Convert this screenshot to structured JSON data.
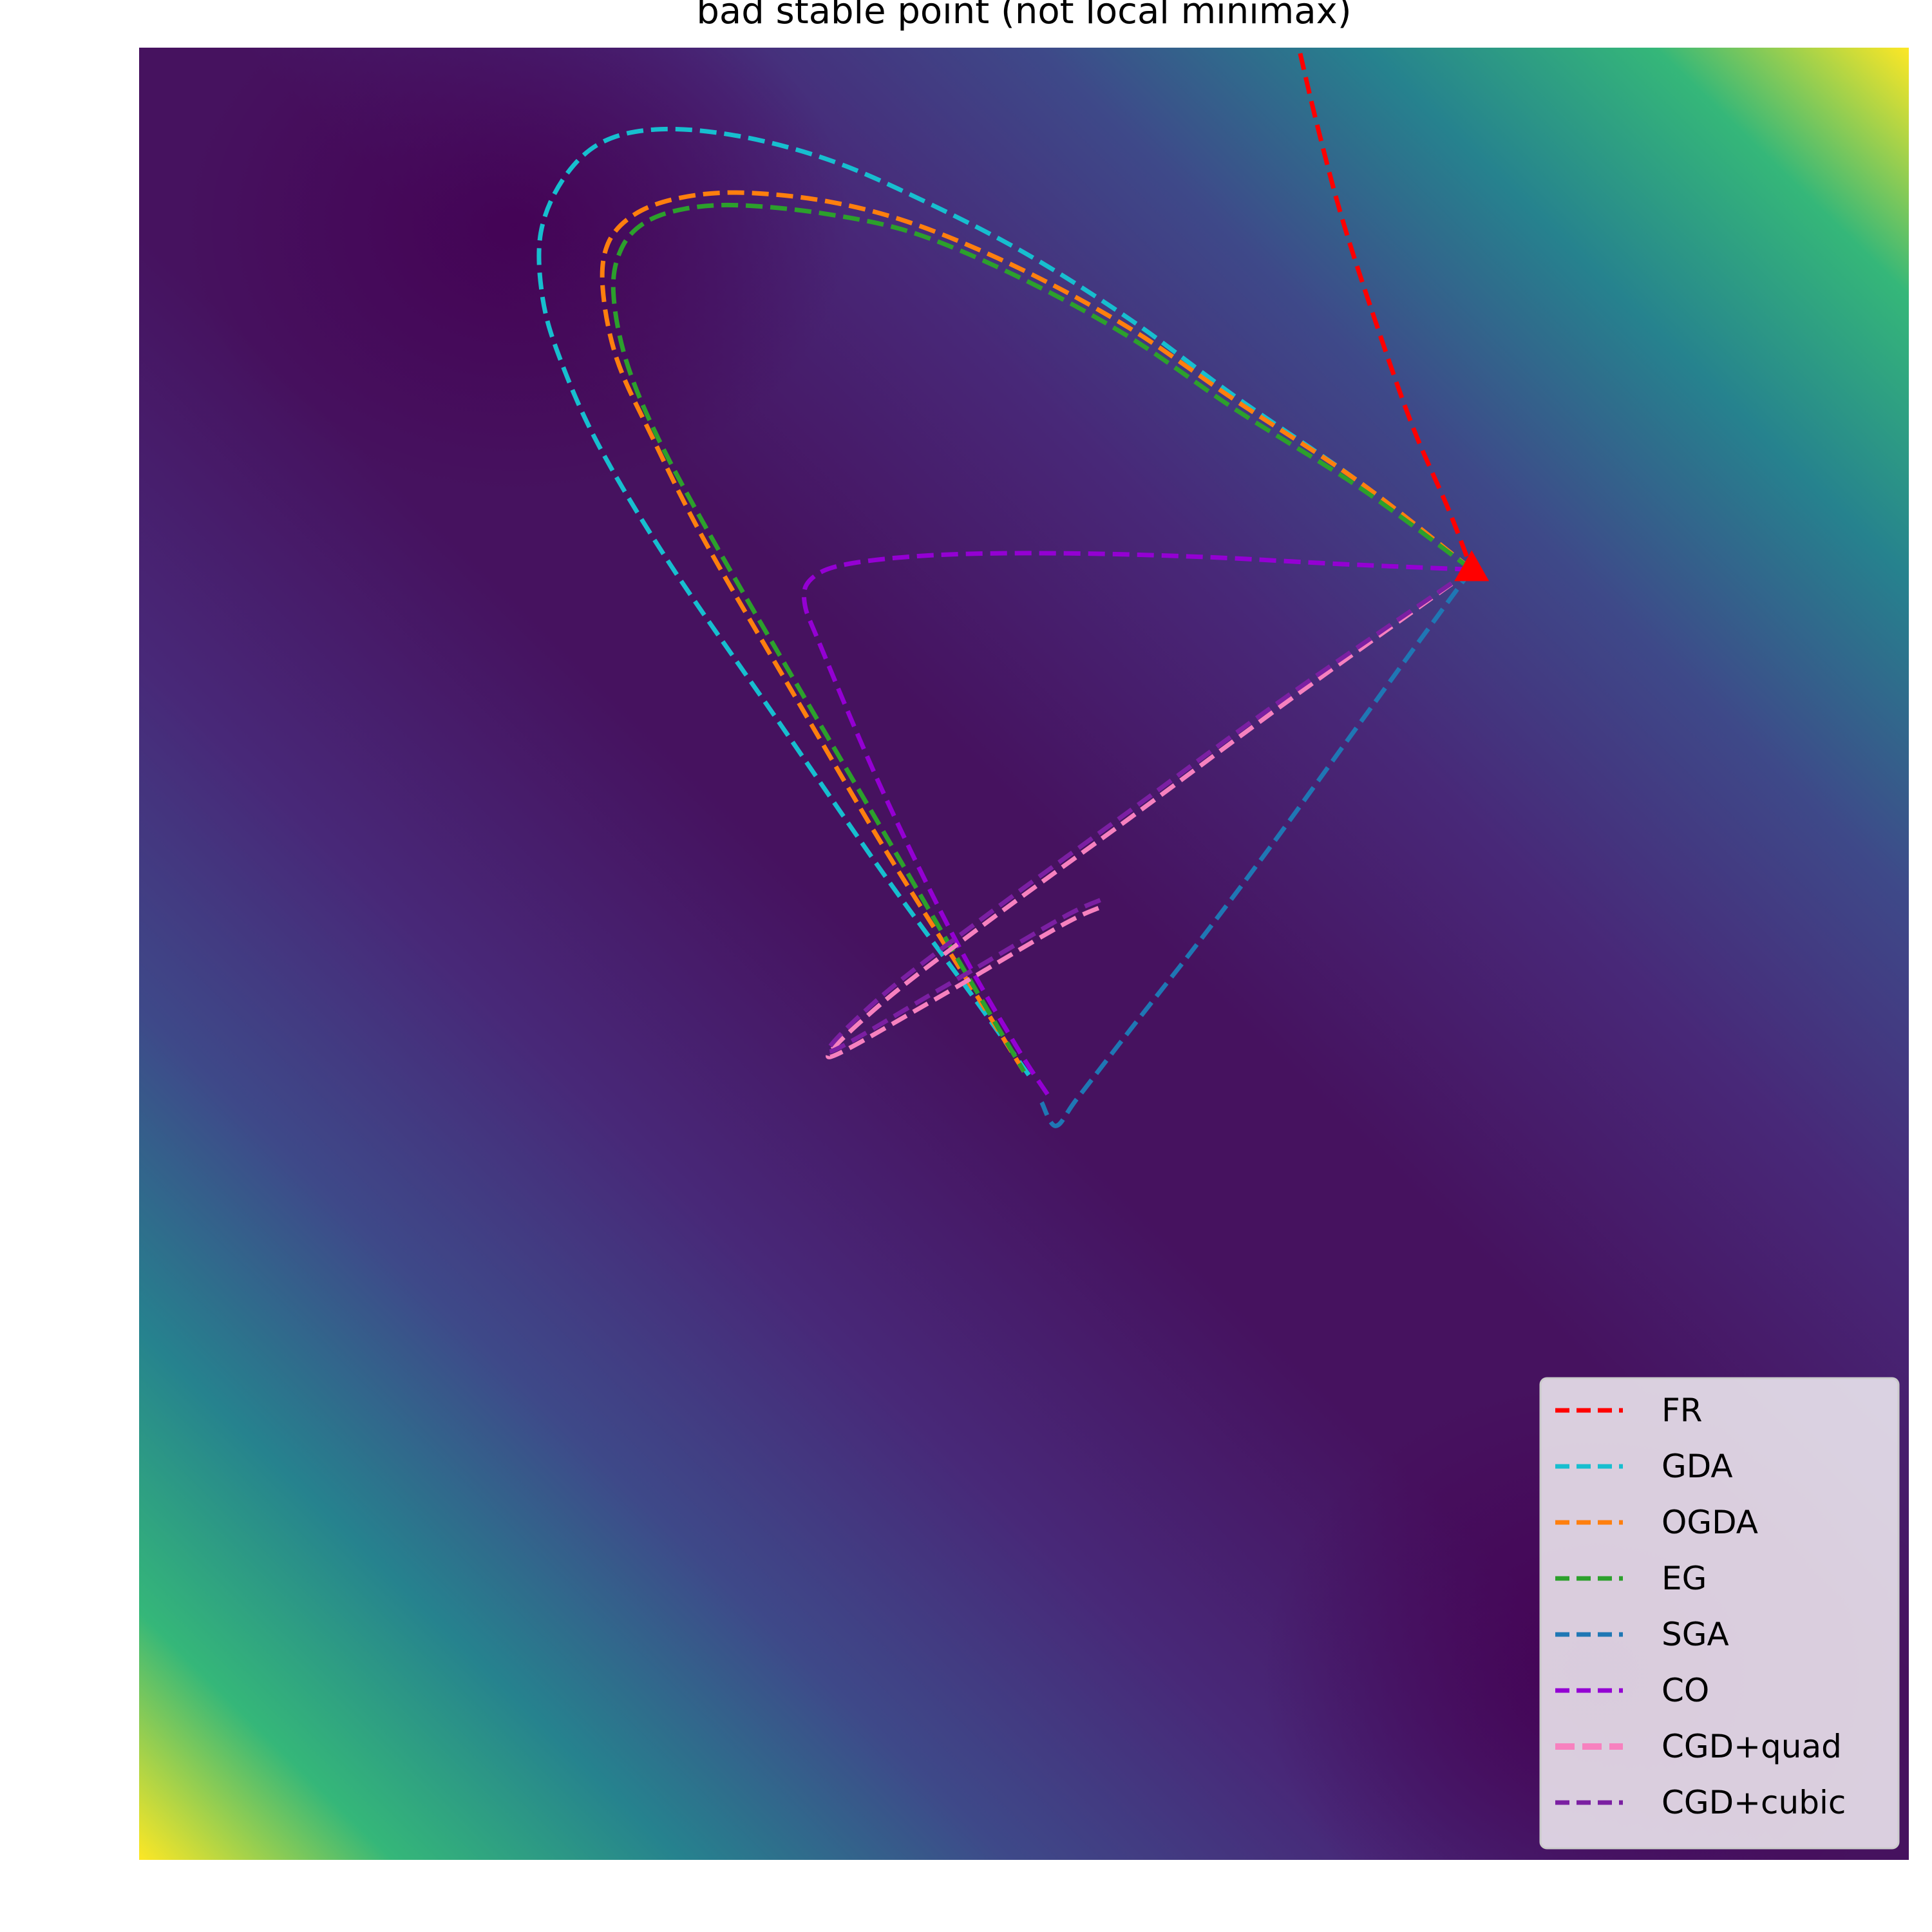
{
  "chart_data": {
    "type": "line",
    "title": "bad stable point (not local minimax)",
    "xlabel": "",
    "ylabel": "",
    "grid": false,
    "axes_visible": false,
    "background": "filled contour of the objective (viridis colormap)",
    "colormap": [
      "#440154",
      "#482878",
      "#3e4989",
      "#31688e",
      "#26828e",
      "#1f9e89",
      "#35b779",
      "#6ece58",
      "#b5de2b",
      "#fde725"
    ],
    "xlim": [
      0,
      1
    ],
    "ylim": [
      0,
      1
    ],
    "legend": {
      "placement": "lower-right"
    },
    "marker": {
      "name": "bad stable point",
      "shape": "triangle",
      "color": "#ff0000",
      "x": 0.753,
      "y": 0.712
    },
    "series": [
      {
        "name": "FR",
        "color": "#ff0000",
        "x": [
          0.653,
          0.665,
          0.68,
          0.7,
          0.72,
          0.74,
          0.753
        ],
        "y": [
          1.01,
          0.96,
          0.905,
          0.845,
          0.79,
          0.745,
          0.712
        ]
      },
      {
        "name": "GDA",
        "color": "#17becf",
        "x": [
          0.753,
          0.69,
          0.62,
          0.56,
          0.5,
          0.44,
          0.39,
          0.34,
          0.295,
          0.262,
          0.24,
          0.227,
          0.228,
          0.238,
          0.26,
          0.3,
          0.36,
          0.42,
          0.47,
          0.505
        ],
        "y": [
          0.712,
          0.76,
          0.807,
          0.85,
          0.887,
          0.917,
          0.938,
          0.951,
          0.955,
          0.948,
          0.928,
          0.898,
          0.862,
          0.828,
          0.78,
          0.715,
          0.63,
          0.545,
          0.478,
          0.43
        ]
      },
      {
        "name": "OGDA",
        "color": "#ff7f0e",
        "x": [
          0.753,
          0.69,
          0.62,
          0.56,
          0.5,
          0.44,
          0.39,
          0.34,
          0.305,
          0.28,
          0.265,
          0.262,
          0.27,
          0.29,
          0.32,
          0.37,
          0.42,
          0.465,
          0.5
        ],
        "y": [
          0.712,
          0.76,
          0.805,
          0.845,
          0.877,
          0.902,
          0.915,
          0.92,
          0.917,
          0.908,
          0.892,
          0.867,
          0.828,
          0.785,
          0.727,
          0.643,
          0.56,
          0.49,
          0.435
        ]
      },
      {
        "name": "EG",
        "color": "#2ca02c",
        "x": [
          0.753,
          0.69,
          0.62,
          0.56,
          0.5,
          0.44,
          0.39,
          0.34,
          0.308,
          0.285,
          0.272,
          0.268,
          0.275,
          0.293,
          0.325,
          0.375,
          0.425,
          0.465,
          0.5
        ],
        "y": [
          0.712,
          0.757,
          0.8,
          0.84,
          0.872,
          0.897,
          0.908,
          0.913,
          0.911,
          0.903,
          0.888,
          0.865,
          0.828,
          0.785,
          0.727,
          0.643,
          0.56,
          0.493,
          0.435
        ]
      },
      {
        "name": "SGA",
        "color": "#1f77b4",
        "x": [
          0.753,
          0.72,
          0.68,
          0.64,
          0.6,
          0.56,
          0.53,
          0.518,
          0.51
        ],
        "y": [
          0.712,
          0.668,
          0.614,
          0.56,
          0.508,
          0.458,
          0.42,
          0.405,
          0.418
        ]
      },
      {
        "name": "CO",
        "color": "#9400d3",
        "x": [
          0.753,
          0.68,
          0.6,
          0.52,
          0.45,
          0.4,
          0.38,
          0.376,
          0.385,
          0.42,
          0.46,
          0.495,
          0.515
        ],
        "y": [
          0.712,
          0.715,
          0.719,
          0.721,
          0.72,
          0.715,
          0.707,
          0.694,
          0.67,
          0.59,
          0.51,
          0.45,
          0.42
        ]
      },
      {
        "name": "CGD+quad",
        "color": "#f781bf",
        "x": [
          0.753,
          0.65,
          0.56,
          0.48,
          0.42,
          0.39,
          0.45,
          0.52,
          0.544
        ],
        "y": [
          0.712,
          0.64,
          0.575,
          0.518,
          0.473,
          0.443,
          0.475,
          0.515,
          0.526
        ]
      },
      {
        "name": "CGD+cubic",
        "color": "#7b1fa2",
        "x": [
          0.753,
          0.65,
          0.56,
          0.48,
          0.42,
          0.39,
          0.45,
          0.52,
          0.544
        ],
        "y": [
          0.712,
          0.643,
          0.579,
          0.522,
          0.477,
          0.446,
          0.479,
          0.519,
          0.53
        ]
      }
    ]
  }
}
